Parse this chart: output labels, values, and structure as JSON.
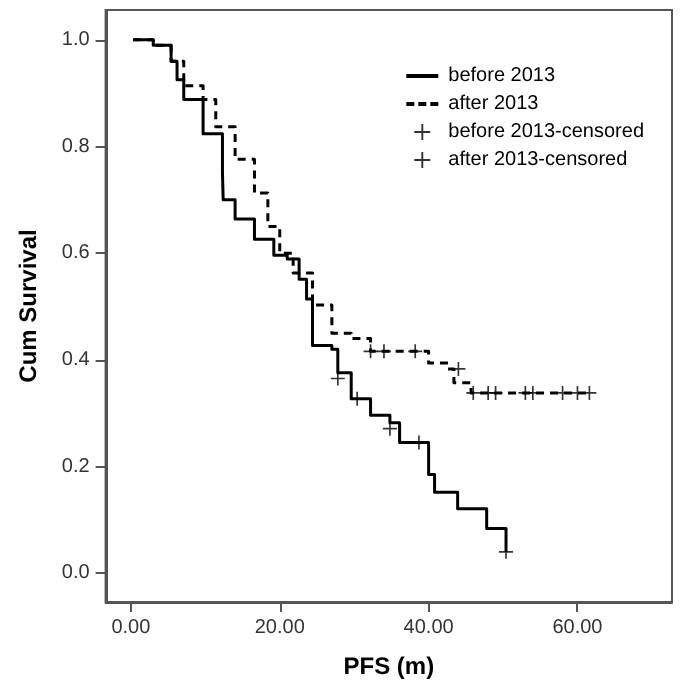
{
  "chart_data": {
    "type": "step",
    "xlabel": "PFS (m)",
    "ylabel": "Cum Survival",
    "xlim": [
      -3.4,
      72.7
    ],
    "ylim": [
      -0.054,
      1.056
    ],
    "xticks": [
      {
        "value": 0,
        "label": "0.00"
      },
      {
        "value": 20,
        "label": "20.00"
      },
      {
        "value": 40,
        "label": "40.00"
      },
      {
        "value": 60,
        "label": "60.00"
      }
    ],
    "yticks": [
      {
        "value": 0,
        "label": "0.0"
      },
      {
        "value": 0.2,
        "label": "0.2"
      },
      {
        "value": 0.4,
        "label": "0.4"
      },
      {
        "value": 0.6,
        "label": "0.6"
      },
      {
        "value": 0.8,
        "label": "0.8"
      },
      {
        "value": 1.0,
        "label": "1.0"
      }
    ],
    "legend": "top right",
    "series": [
      {
        "name": "before 2013",
        "color": "#000000",
        "line_style": "solid",
        "marker": "none",
        "x": [
          0.3,
          3,
          5.4,
          6.2,
          7.1,
          9.7,
          12.3,
          12.4,
          14,
          16.6,
          19.2,
          21,
          22.6,
          23.6,
          24.4,
          27,
          27.8,
          29.6,
          31.4,
          32.2,
          34.8,
          36.1,
          38.7,
          40,
          40.8,
          43.9,
          47.8,
          50.4
        ],
        "values": [
          1.0,
          0.99,
          0.96,
          0.925,
          0.888,
          0.824,
          0.75,
          0.7,
          0.664,
          0.626,
          0.596,
          0.589,
          0.551,
          0.514,
          0.427,
          0.42,
          0.376,
          0.327,
          0.327,
          0.296,
          0.282,
          0.245,
          0.245,
          0.185,
          0.152,
          0.121,
          0.084,
          0.04
        ]
      },
      {
        "name": "after 2013",
        "color": "#000000",
        "line_style": "dashed",
        "marker": "none",
        "x": [
          0.3,
          3,
          5.4,
          7.1,
          9.7,
          11.4,
          14,
          16.6,
          18.4,
          20,
          21.8,
          24.4,
          27,
          29.6,
          32.2,
          38.2,
          40,
          42.6,
          43.4,
          45.7,
          61.6
        ],
        "values": [
          1.0,
          0.99,
          0.96,
          0.914,
          0.888,
          0.837,
          0.776,
          0.713,
          0.65,
          0.6,
          0.563,
          0.503,
          0.45,
          0.44,
          0.416,
          0.416,
          0.394,
          0.383,
          0.357,
          0.338,
          0.338
        ]
      },
      {
        "name": "before 2013-censored",
        "type": "scatter",
        "color": "#000000",
        "marker": "cross",
        "x": [
          27.8,
          30.4,
          34.8,
          38.7,
          50.4
        ],
        "values": [
          0.365,
          0.327,
          0.271,
          0.245,
          0.04
        ]
      },
      {
        "name": "after 2013-censored",
        "type": "scatter",
        "color": "#000000",
        "marker": "cross",
        "x": [
          32.2,
          34,
          38.2,
          44,
          46,
          48,
          49,
          53,
          54,
          58,
          60,
          61.6
        ],
        "values": [
          0.416,
          0.416,
          0.416,
          0.383,
          0.338,
          0.338,
          0.338,
          0.338,
          0.338,
          0.338,
          0.338,
          0.338
        ]
      }
    ]
  }
}
